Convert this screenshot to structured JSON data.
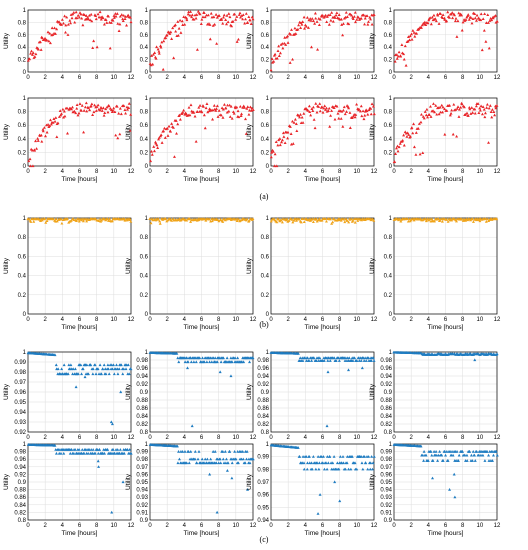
{
  "figure": {
    "panel_labels": [
      "(a)",
      "(b)",
      "(c)"
    ],
    "colors": {
      "a": "#e8262a",
      "b": "#f0a41a",
      "c": "#1f7cc1",
      "grid": "#dddddd",
      "axis": "#000000"
    }
  },
  "chart_data": [
    {
      "id": "a1",
      "type": "scatter",
      "ylabel": "Utility",
      "xlabel": "",
      "xlim": [
        0,
        12
      ],
      "ylim": [
        0,
        1
      ],
      "xticks": [
        "0",
        "2",
        "4",
        "6",
        "8",
        "10",
        "12"
      ],
      "yticks": [
        "0",
        "0.2",
        "0.4",
        "0.6",
        "0.8",
        "1"
      ],
      "series": [
        {
          "gen": "rise",
          "seed": 11,
          "n": 120,
          "ymin": 0.05,
          "ymax": 0.95,
          "spread": 0.18
        }
      ]
    },
    {
      "id": "a2",
      "type": "scatter",
      "ylabel": "",
      "xlabel": "",
      "xlim": [
        0,
        12
      ],
      "ylim": [
        0,
        1
      ],
      "xticks": [
        "0",
        "2",
        "4",
        "6",
        "8",
        "10",
        "12"
      ],
      "yticks": [
        "0",
        "0.2",
        "0.4",
        "0.6",
        "0.8",
        "1"
      ],
      "series": [
        {
          "gen": "rise",
          "seed": 12,
          "n": 120,
          "ymin": 0.05,
          "ymax": 0.95,
          "spread": 0.2
        }
      ]
    },
    {
      "id": "a3",
      "type": "scatter",
      "ylabel": "Utility",
      "xlabel": "",
      "xlim": [
        0,
        12
      ],
      "ylim": [
        0,
        1
      ],
      "xticks": [
        "0",
        "2",
        "4",
        "6",
        "8",
        "10",
        "12"
      ],
      "yticks": [
        "0",
        "0.2",
        "0.4",
        "0.6",
        "0.8",
        "1"
      ],
      "series": [
        {
          "gen": "rise",
          "seed": 13,
          "n": 120,
          "ymin": 0.05,
          "ymax": 0.95,
          "spread": 0.2
        }
      ]
    },
    {
      "id": "a4",
      "type": "scatter",
      "ylabel": "Utility",
      "xlabel": "",
      "xlim": [
        0,
        12
      ],
      "ylim": [
        0,
        1
      ],
      "xticks": [
        "0",
        "2",
        "4",
        "6",
        "8",
        "10",
        "12"
      ],
      "yticks": [
        "0",
        "0.2",
        "0.4",
        "0.6",
        "0.8",
        "1"
      ],
      "series": [
        {
          "gen": "rise",
          "seed": 14,
          "n": 120,
          "ymin": 0.05,
          "ymax": 0.95,
          "spread": 0.16
        }
      ]
    },
    {
      "id": "a5",
      "type": "scatter",
      "ylabel": "Utility",
      "xlabel": "Time [hours]",
      "xlim": [
        0,
        12
      ],
      "ylim": [
        0,
        1
      ],
      "xticks": [
        "0",
        "2",
        "4",
        "6",
        "8",
        "10",
        "12"
      ],
      "yticks": [
        "0",
        "0.2",
        "0.4",
        "0.6",
        "0.8",
        "1"
      ],
      "series": [
        {
          "gen": "rise",
          "seed": 15,
          "n": 120,
          "ymin": 0.05,
          "ymax": 0.9,
          "spread": 0.18
        }
      ]
    },
    {
      "id": "a6",
      "type": "scatter",
      "ylabel": "Utility",
      "xlabel": "Time [hours]",
      "xlim": [
        0,
        12
      ],
      "ylim": [
        0,
        1
      ],
      "xticks": [
        "0",
        "2",
        "4",
        "6",
        "8",
        "10",
        "12"
      ],
      "yticks": [
        "0",
        "0.2",
        "0.4",
        "0.6",
        "0.8",
        "1"
      ],
      "series": [
        {
          "gen": "rise",
          "seed": 16,
          "n": 120,
          "ymin": 0.05,
          "ymax": 0.9,
          "spread": 0.2
        }
      ]
    },
    {
      "id": "a7",
      "type": "scatter",
      "ylabel": "Utility",
      "xlabel": "Time [hours]",
      "xlim": [
        0,
        12
      ],
      "ylim": [
        0,
        1
      ],
      "xticks": [
        "0",
        "2",
        "4",
        "6",
        "8",
        "10",
        "12"
      ],
      "yticks": [
        "0",
        "0.2",
        "0.4",
        "0.6",
        "0.8",
        "1"
      ],
      "series": [
        {
          "gen": "rise",
          "seed": 17,
          "n": 120,
          "ymin": 0.05,
          "ymax": 0.9,
          "spread": 0.2
        }
      ]
    },
    {
      "id": "a8",
      "type": "scatter",
      "ylabel": "Utility",
      "xlabel": "Time [hours]",
      "xlim": [
        0,
        12
      ],
      "ylim": [
        0,
        1
      ],
      "xticks": [
        "0",
        "2",
        "4",
        "6",
        "8",
        "10",
        "12"
      ],
      "yticks": [
        "0",
        "0.2",
        "0.4",
        "0.6",
        "0.8",
        "1"
      ],
      "series": [
        {
          "gen": "rise",
          "seed": 18,
          "n": 120,
          "ymin": 0.05,
          "ymax": 0.9,
          "spread": 0.18
        }
      ]
    },
    {
      "id": "b1",
      "type": "scatter",
      "ylabel": "Utility",
      "xlabel": "Time [hours]",
      "xlim": [
        0,
        12
      ],
      "ylim": [
        0,
        1
      ],
      "xticks": [
        "0",
        "2",
        "4",
        "6",
        "8",
        "10",
        "12"
      ],
      "yticks": [
        "0",
        "0.2",
        "0.4",
        "0.6",
        "0.8",
        "1"
      ],
      "series": [
        {
          "gen": "flat",
          "seed": 21,
          "n": 110,
          "base": 0.99,
          "spread": 0.03
        }
      ]
    },
    {
      "id": "b2",
      "type": "scatter",
      "ylabel": "Utility",
      "xlabel": "Time [hours]",
      "xlim": [
        0,
        12
      ],
      "ylim": [
        0,
        1
      ],
      "xticks": [
        "0",
        "2",
        "4",
        "6",
        "8",
        "10",
        "12"
      ],
      "yticks": [
        "0",
        "0.2",
        "0.4",
        "0.6",
        "0.8",
        "1"
      ],
      "series": [
        {
          "gen": "flat",
          "seed": 22,
          "n": 110,
          "base": 0.99,
          "spread": 0.03
        }
      ]
    },
    {
      "id": "b3",
      "type": "scatter",
      "ylabel": "Utility",
      "xlabel": "Time [hours]",
      "xlim": [
        0,
        12
      ],
      "ylim": [
        0,
        1
      ],
      "xticks": [
        "0",
        "2",
        "4",
        "6",
        "8",
        "10",
        "12"
      ],
      "yticks": [
        "0",
        "0.2",
        "0.4",
        "0.6",
        "0.8",
        "1"
      ],
      "series": [
        {
          "gen": "flat",
          "seed": 23,
          "n": 110,
          "base": 0.99,
          "spread": 0.04
        }
      ]
    },
    {
      "id": "b4",
      "type": "scatter",
      "ylabel": "Utility",
      "xlabel": "Time [hours]",
      "xlim": [
        0,
        12
      ],
      "ylim": [
        0,
        1
      ],
      "xticks": [
        "0",
        "2",
        "4",
        "6",
        "8",
        "10",
        "12"
      ],
      "yticks": [
        "0",
        "0.2",
        "0.4",
        "0.6",
        "0.8",
        "1"
      ],
      "series": [
        {
          "gen": "flat",
          "seed": 24,
          "n": 110,
          "base": 0.99,
          "spread": 0.03
        }
      ]
    },
    {
      "id": "c1",
      "type": "scatter",
      "ylabel": "Utility",
      "xlabel": "",
      "xlim": [
        0,
        12
      ],
      "ylim": [
        0.92,
        1
      ],
      "xticks": [
        "0",
        "2",
        "4",
        "6",
        "8",
        "10",
        "12"
      ],
      "yticks": [
        "0.92",
        "0.93",
        "0.94",
        "0.95",
        "0.96",
        "0.97",
        "0.98",
        "0.99",
        "1"
      ],
      "series": [
        {
          "gen": "step",
          "seed": 31,
          "n": 130,
          "base": 0.999,
          "levels": [
            0.987,
            0.983,
            0.978
          ],
          "outliers": [
            0.965,
            0.93,
            0.96,
            0.928,
            0.975
          ]
        }
      ]
    },
    {
      "id": "c2",
      "type": "scatter",
      "ylabel": "Utility",
      "xlabel": "",
      "xlim": [
        0,
        12
      ],
      "ylim": [
        0.8,
        1
      ],
      "xticks": [
        "0",
        "2",
        "4",
        "6",
        "8",
        "10",
        "12"
      ],
      "yticks": [
        "0.8",
        "0.82",
        "0.84",
        "0.86",
        "0.88",
        "0.9",
        "0.92",
        "0.94",
        "0.96",
        "0.98",
        "1"
      ],
      "series": [
        {
          "gen": "step",
          "seed": 32,
          "n": 130,
          "base": 0.998,
          "levels": [
            0.985,
            0.975
          ],
          "outliers": [
            0.96,
            0.95,
            0.815,
            0.94
          ]
        }
      ]
    },
    {
      "id": "c3",
      "type": "scatter",
      "ylabel": "Utility",
      "xlabel": "",
      "xlim": [
        0,
        12
      ],
      "ylim": [
        0.8,
        1
      ],
      "xticks": [
        "0",
        "2",
        "4",
        "6",
        "8",
        "10",
        "12"
      ],
      "yticks": [
        "0.8",
        "0.82",
        "0.84",
        "0.86",
        "0.88",
        "0.9",
        "0.92",
        "0.94",
        "0.96",
        "0.98",
        "1"
      ],
      "series": [
        {
          "gen": "step",
          "seed": 33,
          "n": 130,
          "base": 0.998,
          "levels": [
            0.985,
            0.978
          ],
          "outliers": [
            0.96,
            0.95,
            0.815,
            0.955
          ]
        }
      ]
    },
    {
      "id": "c4",
      "type": "scatter",
      "ylabel": "Utility",
      "xlabel": "",
      "xlim": [
        0,
        12
      ],
      "ylim": [
        0.8,
        1
      ],
      "xticks": [
        "0",
        "2",
        "4",
        "6",
        "8",
        "10",
        "12"
      ],
      "yticks": [
        "0.8",
        "0.82",
        "0.84",
        "0.86",
        "0.88",
        "0.9",
        "0.92",
        "0.94",
        "0.96",
        "0.98",
        "1"
      ],
      "series": [
        {
          "gen": "step",
          "seed": 34,
          "n": 130,
          "base": 0.999,
          "levels": [
            0.995,
            0.993
          ],
          "outliers": [
            0.98
          ]
        }
      ]
    },
    {
      "id": "c5",
      "type": "scatter",
      "ylabel": "Utility",
      "xlabel": "Time [hours]",
      "xlim": [
        0,
        12
      ],
      "ylim": [
        0.8,
        1
      ],
      "xticks": [
        "0",
        "2",
        "4",
        "6",
        "8",
        "10",
        "12"
      ],
      "yticks": [
        "0.8",
        "0.82",
        "0.84",
        "0.86",
        "0.88",
        "0.9",
        "0.92",
        "0.94",
        "0.96",
        "0.98",
        "1"
      ],
      "series": [
        {
          "gen": "step",
          "seed": 35,
          "n": 130,
          "base": 0.998,
          "levels": [
            0.985,
            0.975
          ],
          "outliers": [
            0.955,
            0.9,
            0.82,
            0.94
          ]
        }
      ]
    },
    {
      "id": "c6",
      "type": "scatter",
      "ylabel": "Utility",
      "xlabel": "Time [hours]",
      "xlim": [
        0,
        12
      ],
      "ylim": [
        0.9,
        1
      ],
      "xticks": [
        "0",
        "2",
        "4",
        "6",
        "8",
        "10",
        "12"
      ],
      "yticks": [
        "0.9",
        "0.91",
        "0.92",
        "0.93",
        "0.94",
        "0.95",
        "0.96",
        "0.97",
        "0.98",
        "0.99",
        "1"
      ],
      "series": [
        {
          "gen": "step",
          "seed": 36,
          "n": 130,
          "base": 0.999,
          "levels": [
            0.99,
            0.98,
            0.975
          ],
          "outliers": [
            0.96,
            0.955,
            0.94,
            0.91,
            0.965
          ]
        }
      ]
    },
    {
      "id": "c7",
      "type": "scatter",
      "ylabel": "Utility",
      "xlabel": "Time [hours]",
      "xlim": [
        0,
        12
      ],
      "ylim": [
        0.94,
        1
      ],
      "xticks": [
        "0",
        "2",
        "4",
        "6",
        "8",
        "10",
        "12"
      ],
      "yticks": [
        "0.94",
        "0.95",
        "0.96",
        "0.97",
        "0.98",
        "0.99",
        "1"
      ],
      "series": [
        {
          "gen": "step",
          "seed": 37,
          "n": 130,
          "base": 0.999,
          "levels": [
            0.99,
            0.985,
            0.98
          ],
          "outliers": [
            0.96,
            0.955,
            0.945,
            0.97
          ]
        }
      ]
    },
    {
      "id": "c8",
      "type": "scatter",
      "ylabel": "Utility",
      "xlabel": "Time [hours]",
      "xlim": [
        0,
        12
      ],
      "ylim": [
        0.9,
        1
      ],
      "xticks": [
        "0",
        "2",
        "4",
        "6",
        "8",
        "10",
        "12"
      ],
      "yticks": [
        "0.9",
        "0.91",
        "0.92",
        "0.93",
        "0.94",
        "0.95",
        "0.96",
        "0.97",
        "0.98",
        "0.99",
        "1"
      ],
      "series": [
        {
          "gen": "step",
          "seed": 38,
          "n": 130,
          "base": 0.999,
          "levels": [
            0.99,
            0.985,
            0.978
          ],
          "outliers": [
            0.955,
            0.94,
            0.93,
            0.96
          ]
        }
      ]
    }
  ]
}
